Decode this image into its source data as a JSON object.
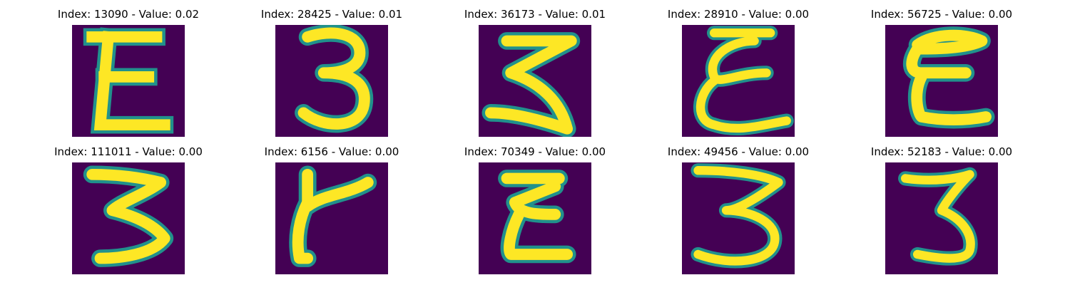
{
  "figure": {
    "colormap": {
      "background": "#440154",
      "edge": "#21918c",
      "stroke": "#fde725"
    },
    "panels": [
      {
        "title": "Index: 13090 - Value: 0.02",
        "glyph": "E"
      },
      {
        "title": "Index: 28425 - Value: 0.01",
        "glyph": "3"
      },
      {
        "title": "Index: 36173 - Value: 0.01",
        "glyph": "3"
      },
      {
        "title": "Index: 28910 - Value: 0.00",
        "glyph": "E"
      },
      {
        "title": "Index: 56725 - Value: 0.00",
        "glyph": "E"
      },
      {
        "title": "Index: 111011 - Value: 0.00",
        "glyph": "3"
      },
      {
        "title": "Index: 6156 - Value: 0.00",
        "glyph": "Y"
      },
      {
        "title": "Index: 70349 - Value: 0.00",
        "glyph": "E"
      },
      {
        "title": "Index: 49456 - Value: 0.00",
        "glyph": "3"
      },
      {
        "title": "Index: 52183 - Value: 0.00",
        "glyph": "3"
      }
    ]
  }
}
